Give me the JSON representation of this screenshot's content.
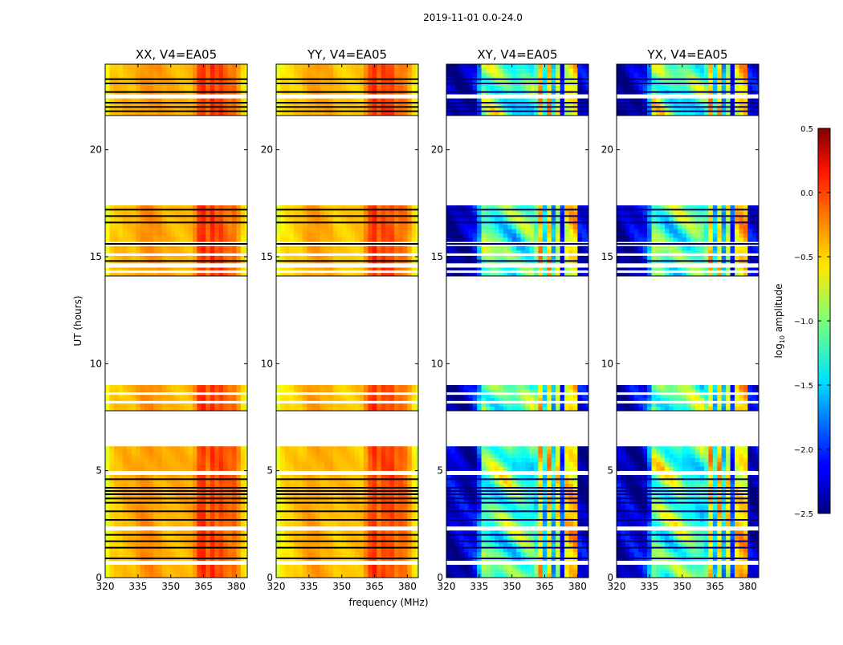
{
  "chart_data": {
    "type": "heatmap",
    "title": "2019-11-01 0.0-24.0",
    "xlabel": "frequency (MHz)",
    "ylabel": "UT (hours)",
    "xlim": [
      320,
      385
    ],
    "ylim": [
      0,
      24
    ],
    "xticks": [
      320,
      335,
      350,
      365,
      380
    ],
    "yticks": [
      0,
      5,
      10,
      15,
      20
    ],
    "colorbar": {
      "label": "log10 amplitude",
      "label_main": "log",
      "label_sub": "10",
      "label_rest": " amplitude",
      "range": [
        -2.5,
        0.5
      ],
      "ticks": [
        0.5,
        0.0,
        -0.5,
        -1.0,
        -1.5,
        -2.0,
        -2.5
      ],
      "tick_labels": [
        "0.5",
        "0.0",
        "−0.5",
        "−1.0",
        "−1.5",
        "−2.0",
        "−2.5"
      ],
      "colormap": "jet"
    },
    "time_ranges_with_data": [
      [
        0.0,
        6.14
      ],
      [
        7.8,
        9.0
      ],
      [
        14.1,
        17.4
      ],
      [
        21.6,
        24.0
      ]
    ],
    "flagged_row_times": [
      0.9,
      1.4,
      1.7,
      2.0,
      2.7,
      3.1,
      3.5,
      3.7,
      3.9,
      4.05,
      4.2,
      4.6,
      14.8,
      15.6,
      16.6,
      16.9,
      17.2,
      21.8,
      22.0,
      22.2,
      22.7,
      23.1,
      23.3
    ],
    "gap_row_times": [
      0.7,
      2.3,
      4.9,
      8.2,
      8.6,
      14.3,
      14.55,
      15.1,
      15.6,
      22.5
    ],
    "frequency_bins": [
      321,
      323,
      325,
      327,
      329,
      331,
      333,
      335,
      337,
      339,
      341,
      343,
      345,
      347,
      349,
      351,
      353,
      355,
      357,
      359,
      361,
      363,
      365,
      367,
      369,
      371,
      373,
      375,
      377,
      379,
      381,
      383,
      385
    ],
    "panels": [
      {
        "title": "XX, V4=EA05",
        "kind": "parallel",
        "spectral_profile": [
          -0.7,
          -0.5,
          -0.45,
          -0.45,
          -0.4,
          -0.4,
          -0.4,
          -0.35,
          -0.3,
          -0.3,
          -0.3,
          -0.35,
          -0.35,
          -0.4,
          -0.4,
          -0.4,
          -0.4,
          -0.4,
          -0.4,
          -0.4,
          -0.3,
          -0.05,
          0.0,
          -0.2,
          0.0,
          -0.15,
          -0.05,
          -0.15,
          -0.2,
          -0.15,
          -0.3,
          -0.5,
          -0.7
        ]
      },
      {
        "title": "YY, V4=EA05",
        "kind": "parallel",
        "spectral_profile": [
          -0.7,
          -0.55,
          -0.5,
          -0.5,
          -0.45,
          -0.45,
          -0.4,
          -0.35,
          -0.35,
          -0.35,
          -0.4,
          -0.4,
          -0.4,
          -0.45,
          -0.45,
          -0.45,
          -0.45,
          -0.45,
          -0.45,
          -0.45,
          -0.3,
          -0.1,
          0.0,
          -0.2,
          -0.05,
          -0.1,
          -0.05,
          -0.2,
          -0.15,
          -0.2,
          -0.35,
          -0.55,
          -0.75
        ]
      },
      {
        "title": "XY, V4=EA05",
        "kind": "cross",
        "spectral_profile": [
          -2.3,
          -2.3,
          -2.3,
          -2.3,
          -2.3,
          -2.3,
          -2.2,
          -1.8,
          -1.1,
          -1.1,
          -1.1,
          -1.1,
          -1.1,
          -1.1,
          -1.1,
          -1.2,
          -1.2,
          -1.2,
          -1.2,
          -1.2,
          -1.2,
          -0.5,
          -1.4,
          -0.5,
          -1.5,
          -0.7,
          -2.0,
          -0.6,
          -0.5,
          -0.5,
          -2.3,
          -2.3,
          -2.3
        ]
      },
      {
        "title": "YX, V4=EA05",
        "kind": "cross",
        "spectral_profile": [
          -2.3,
          -2.3,
          -2.3,
          -2.3,
          -2.3,
          -2.3,
          -2.2,
          -1.8,
          -1.0,
          -1.0,
          -1.0,
          -1.1,
          -1.1,
          -1.1,
          -1.1,
          -1.2,
          -1.2,
          -1.2,
          -1.2,
          -1.2,
          -1.2,
          -0.5,
          -1.4,
          -0.5,
          -1.5,
          -0.7,
          -2.0,
          -0.6,
          -0.5,
          -0.5,
          -2.3,
          -2.3,
          -2.3
        ]
      }
    ]
  }
}
